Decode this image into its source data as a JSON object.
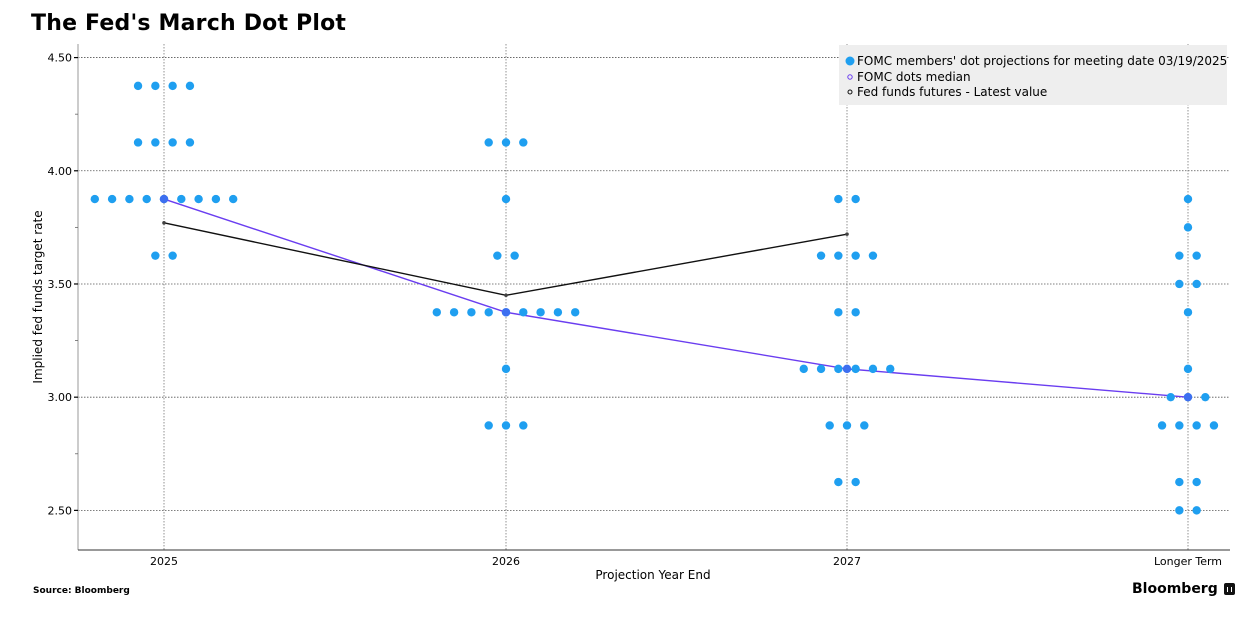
{
  "chart_data": {
    "type": "scatter",
    "title": "The Fed's March Dot Plot",
    "xlabel": "Projection Year End",
    "ylabel": "Implied fed funds target rate",
    "categories": [
      "2025",
      "2026",
      "2027",
      "Longer Term"
    ],
    "ylim": [
      2.325,
      4.56
    ],
    "yticks": [
      "4.50",
      "4.00",
      "3.50",
      "3.00",
      "2.50"
    ],
    "ytick_values": [
      4.5,
      4.0,
      3.5,
      3.0,
      2.5
    ],
    "grid": true,
    "legend_position": "top-right",
    "legend": [
      "FOMC members' dot projections for meeting date 03/19/2025",
      "FOMC dots median",
      "Fed funds futures - Latest value"
    ],
    "series": [
      {
        "name": "FOMC members' dot projections for meeting date 03/19/2025",
        "kind": "dots",
        "color": "#1f9ff0",
        "groups": [
          {
            "category": "2025",
            "levels": [
              {
                "value": 4.375,
                "count": 4
              },
              {
                "value": 4.125,
                "count": 4
              },
              {
                "value": 3.875,
                "count": 9
              },
              {
                "value": 3.625,
                "count": 2
              }
            ]
          },
          {
            "category": "2026",
            "levels": [
              {
                "value": 4.125,
                "count": 3
              },
              {
                "value": 3.875,
                "count": 1
              },
              {
                "value": 3.625,
                "count": 2
              },
              {
                "value": 3.375,
                "count": 9
              },
              {
                "value": 3.125,
                "count": 1
              },
              {
                "value": 2.875,
                "count": 3
              }
            ]
          },
          {
            "category": "2027",
            "levels": [
              {
                "value": 3.875,
                "count": 2
              },
              {
                "value": 3.625,
                "count": 4
              },
              {
                "value": 3.375,
                "count": 2
              },
              {
                "value": 3.125,
                "count": 6
              },
              {
                "value": 2.875,
                "count": 3
              },
              {
                "value": 2.625,
                "count": 2
              }
            ]
          },
          {
            "category": "Longer Term",
            "levels": [
              {
                "value": 3.875,
                "count": 1
              },
              {
                "value": 3.75,
                "count": 1
              },
              {
                "value": 3.625,
                "count": 2
              },
              {
                "value": 3.5,
                "count": 2
              },
              {
                "value": 3.375,
                "count": 1
              },
              {
                "value": 3.125,
                "count": 1
              },
              {
                "value": 3.0,
                "count": 3
              },
              {
                "value": 2.875,
                "count": 4
              },
              {
                "value": 2.625,
                "count": 2
              },
              {
                "value": 2.5,
                "count": 2
              }
            ]
          }
        ]
      },
      {
        "name": "FOMC dots median",
        "kind": "line",
        "color": "#6a3df0",
        "values": [
          3.875,
          3.375,
          3.125,
          3.0
        ]
      },
      {
        "name": "Fed funds futures - Latest value",
        "kind": "line",
        "color": "#111111",
        "values": [
          3.77,
          3.45,
          3.72,
          null
        ]
      }
    ]
  },
  "footer": {
    "source": "Source: Bloomberg",
    "brand": "Bloomberg"
  }
}
